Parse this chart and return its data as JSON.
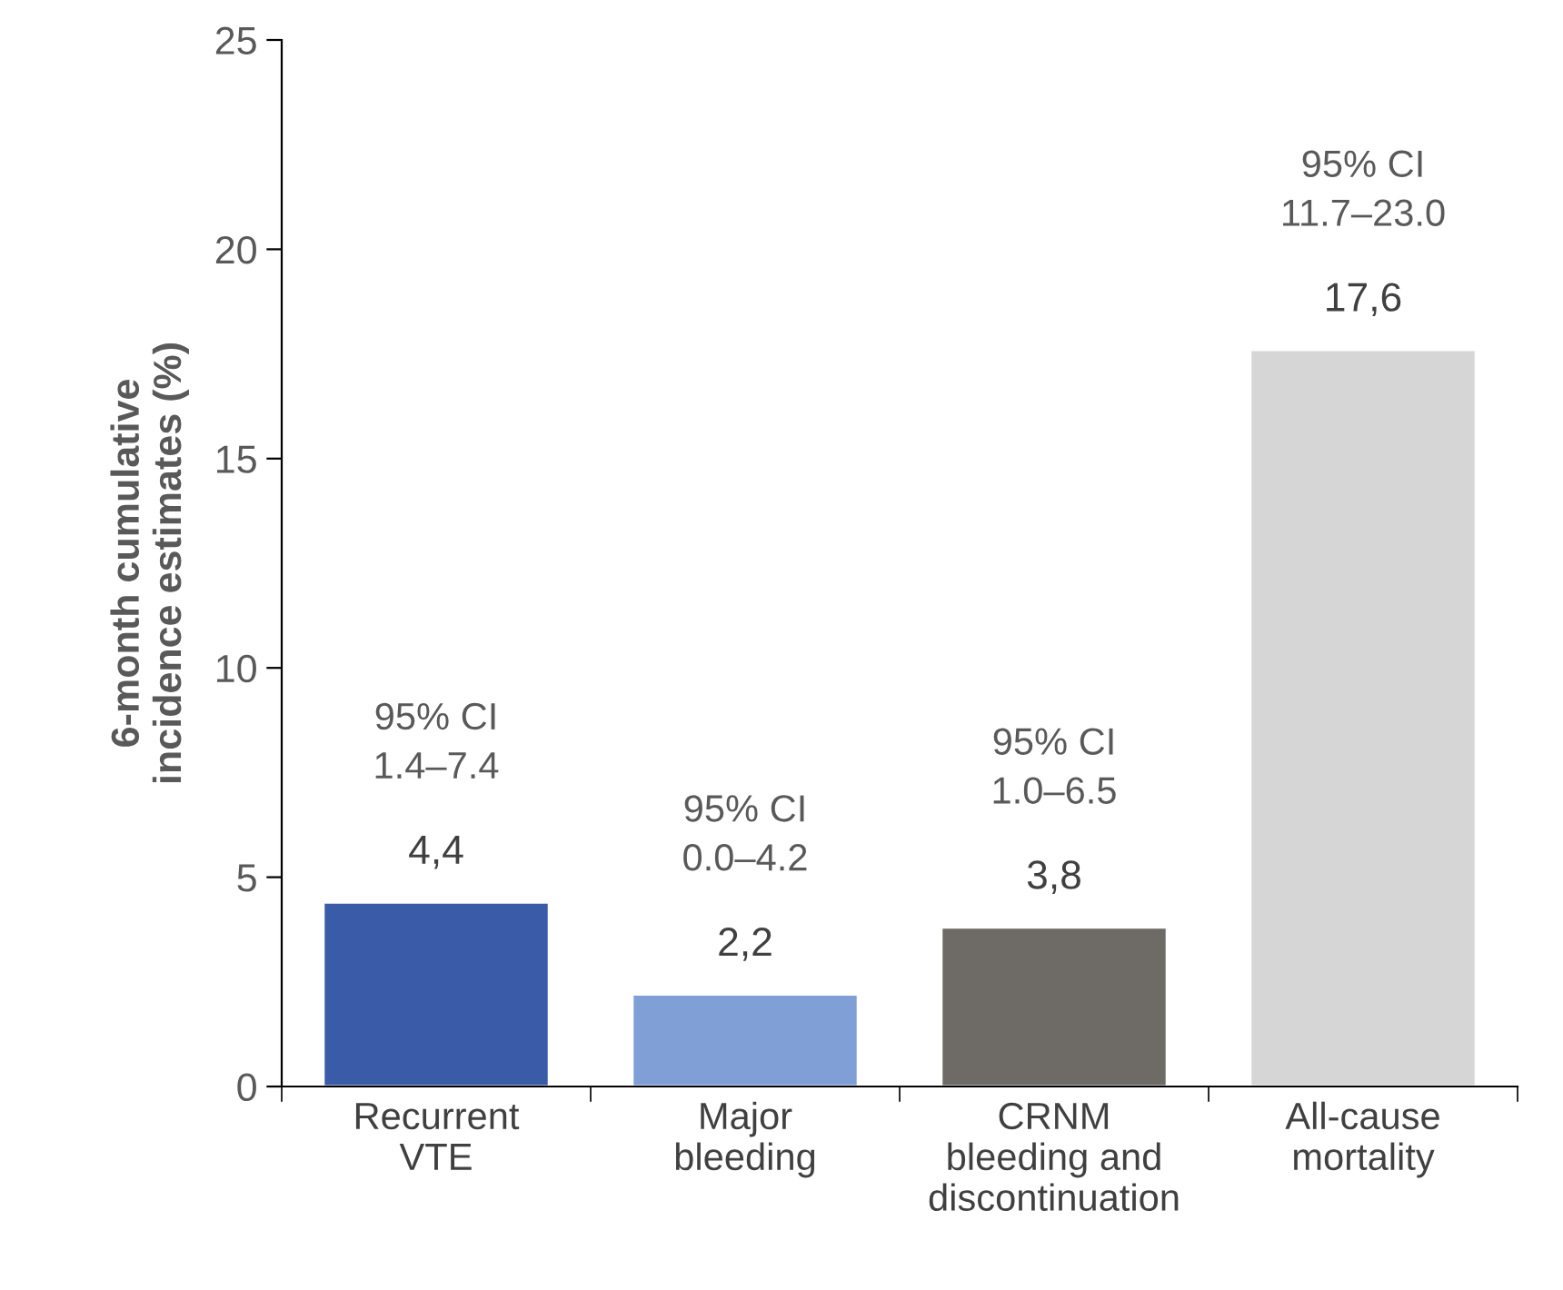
{
  "chart_data": {
    "type": "bar",
    "ylabel": "6-month cumulative\nincidence estimates (%)",
    "categories": [
      "Recurrent\nVTE",
      "Major\nbleeding",
      "CRNM\nbleeding and\ndiscontinuation",
      "All-cause\nmortality"
    ],
    "values": [
      4.4,
      2.2,
      3.8,
      17.6
    ],
    "colors": [
      "#3a5ba8",
      "#7f9fd6",
      "#6e6b66",
      "#d6d6d6"
    ],
    "value_labels": [
      "4,4",
      "2,2",
      "3,8",
      "17,6"
    ],
    "annotations": [
      "95% CI\n1.4–7.4",
      "95% CI\n0.0–4.2",
      "95% CI\n1.0–6.5",
      "95% CI\n11.7–23.0"
    ],
    "ylim": [
      0,
      25
    ],
    "yticks": [
      0,
      5,
      10,
      15,
      20,
      25
    ],
    "grid": false,
    "legend": false
  }
}
